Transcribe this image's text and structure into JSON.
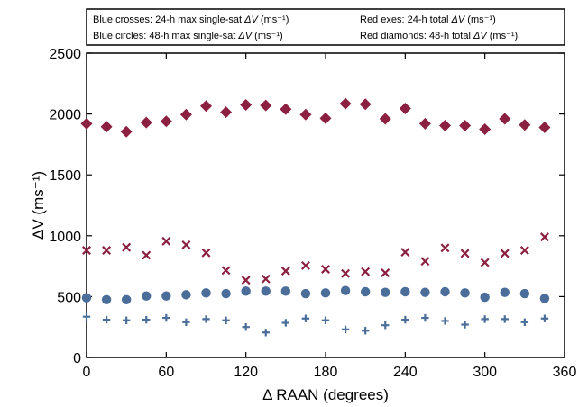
{
  "chart_data": {
    "type": "scatter",
    "xlabel": "Δ RAAN (degrees)",
    "ylabel": "ΔV (ms⁻¹)",
    "xlim": [
      0,
      360
    ],
    "ylim": [
      0,
      2500
    ],
    "x_ticks": [
      "0",
      "60",
      "120",
      "180",
      "240",
      "300",
      "360"
    ],
    "y_ticks": [
      "0",
      "500",
      "1000",
      "1500",
      "2000",
      "2500"
    ],
    "grid": false,
    "legend": {
      "placement": "top",
      "entries": [
        {
          "pre": "Blue crosses: 24-h max single-sat ",
          "post": " (ms⁻¹)"
        },
        {
          "pre": "Red exes: 24-h total ",
          "post": " (ms⁻¹)"
        },
        {
          "pre": "Blue circles: 48-h max single-sat ",
          "post": " (ms⁻¹)"
        },
        {
          "pre": "Red diamonds: 48-h total ",
          "post": " (ms⁻¹)"
        }
      ]
    },
    "x": [
      0,
      15,
      30,
      45,
      60,
      75,
      90,
      105,
      120,
      135,
      150,
      165,
      180,
      195,
      210,
      225,
      240,
      255,
      270,
      285,
      300,
      315,
      330,
      345
    ],
    "series": [
      {
        "marker": "diamond",
        "color": "#8b2040",
        "values": [
          1920,
          1895,
          1855,
          1930,
          1940,
          1995,
          2065,
          2015,
          2075,
          2070,
          2040,
          1995,
          1965,
          2085,
          2080,
          1960,
          2045,
          1920,
          1905,
          1905,
          1875,
          1960,
          1910,
          1890
        ]
      },
      {
        "marker": "x",
        "color": "#8b2040",
        "values": [
          880,
          880,
          905,
          840,
          955,
          925,
          860,
          715,
          635,
          645,
          710,
          755,
          725,
          690,
          705,
          695,
          865,
          790,
          900,
          855,
          780,
          855,
          880,
          990
        ]
      },
      {
        "marker": "circle",
        "color": "#4a6d9a",
        "values": [
          490,
          475,
          475,
          505,
          505,
          515,
          530,
          525,
          545,
          545,
          545,
          525,
          530,
          550,
          540,
          535,
          540,
          535,
          540,
          530,
          495,
          535,
          525,
          485
        ]
      },
      {
        "marker": "plus",
        "color": "#4a6d9a",
        "values": [
          335,
          310,
          305,
          310,
          325,
          290,
          315,
          305,
          250,
          205,
          285,
          320,
          305,
          230,
          220,
          265,
          310,
          325,
          300,
          270,
          315,
          315,
          290,
          320
        ]
      }
    ]
  }
}
